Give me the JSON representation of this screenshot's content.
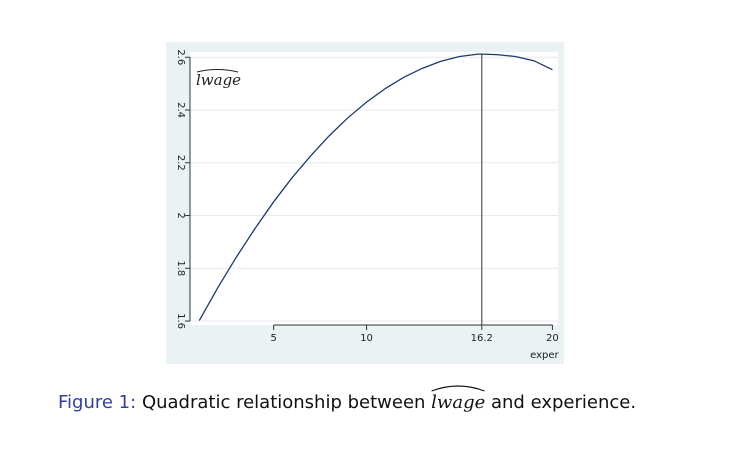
{
  "chart_data": {
    "type": "line",
    "series_label": "lwage",
    "xlabel": "exper",
    "ylabel": "",
    "xlim": [
      0.5,
      20.3
    ],
    "ylim": [
      1.585,
      2.62
    ],
    "x_ticks": [
      5,
      10,
      16.2,
      20
    ],
    "x_tick_labels": [
      "5",
      "10",
      "16.2",
      "20"
    ],
    "y_ticks": [
      1.6,
      1.8,
      2.0,
      2.2,
      2.4,
      2.6
    ],
    "y_tick_labels": [
      "1.6",
      "1.8",
      "2",
      "2.2",
      "2.4",
      "2.6"
    ],
    "grid": "horizontal",
    "peak_x": 16.2,
    "peak_marker": "vertical line",
    "series": [
      {
        "x": [
          1,
          2,
          3,
          4,
          5,
          6,
          7,
          8,
          9,
          10,
          11,
          12,
          13,
          14,
          15,
          16,
          16.2,
          17,
          18,
          19,
          20
        ],
        "y": [
          1.602,
          1.727,
          1.843,
          1.951,
          2.052,
          2.144,
          2.227,
          2.303,
          2.371,
          2.43,
          2.481,
          2.524,
          2.558,
          2.585,
          2.603,
          2.612,
          2.612,
          2.61,
          2.603,
          2.587,
          2.553
        ]
      }
    ],
    "line_color": "#1a3b6d"
  },
  "caption": {
    "figure_number": "Figure 1:",
    "text_before": "Quadratic relationship between",
    "math": "lwage",
    "text_after": "and experience."
  }
}
